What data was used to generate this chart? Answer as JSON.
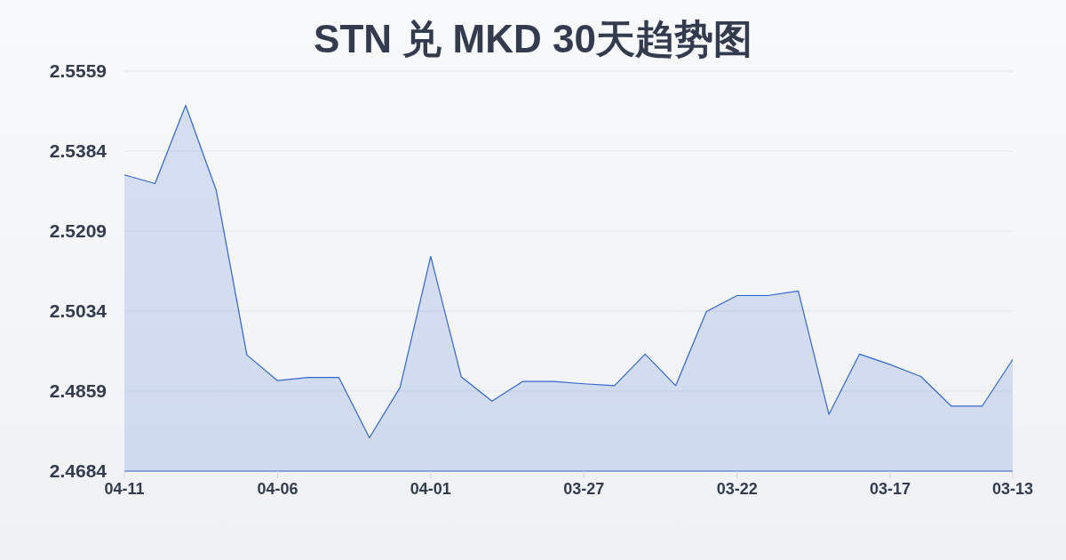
{
  "chart_data": {
    "type": "area",
    "title": "STN 兑 MKD 30天趋势图",
    "categories": [
      "04-11",
      null,
      null,
      null,
      null,
      "04-06",
      null,
      null,
      null,
      null,
      "04-01",
      null,
      null,
      null,
      null,
      "03-27",
      null,
      null,
      null,
      null,
      "03-22",
      null,
      null,
      null,
      null,
      "03-17",
      null,
      null,
      null,
      "03-13"
    ],
    "values": [
      2.5332,
      2.5313,
      2.5484,
      2.5298,
      2.4938,
      2.4882,
      2.4889,
      2.4889,
      2.4757,
      2.4867,
      2.5154,
      2.489,
      2.4837,
      2.488,
      2.488,
      2.4875,
      2.4871,
      2.494,
      2.4871,
      2.5033,
      2.5068,
      2.5068,
      2.5078,
      2.4808,
      2.494,
      2.4917,
      2.4891,
      2.4826,
      2.4826,
      2.4928
    ],
    "color": "#3366cc",
    "ylim": [
      2.4684,
      2.5559
    ],
    "yticks": [
      2.4684,
      2.4859,
      2.5034,
      2.5209,
      2.5384,
      2.5559
    ],
    "grid": "y"
  }
}
